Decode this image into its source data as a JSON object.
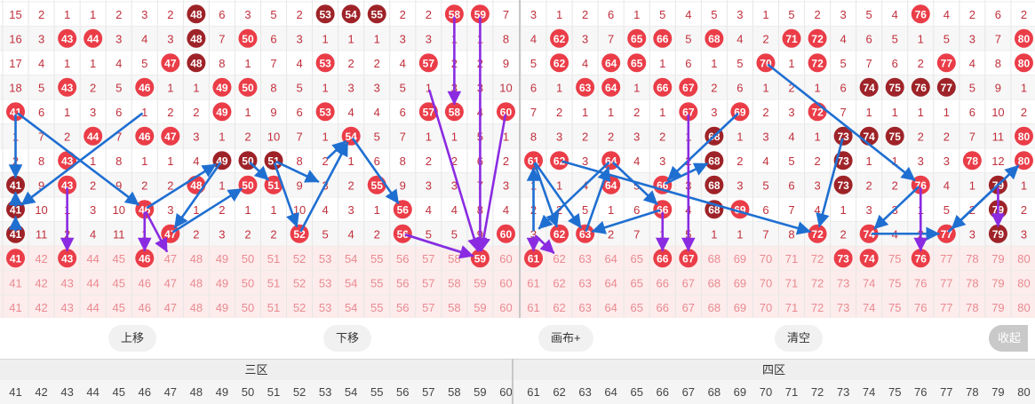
{
  "grid": {
    "rows": [
      [
        "15",
        "2",
        "1",
        "1",
        "2",
        "3",
        "2",
        "48",
        "6",
        "3",
        "5",
        "2",
        "53",
        "54",
        "55",
        "2",
        "2",
        "58",
        "59",
        "7",
        "3",
        "1",
        "2",
        "6",
        "1",
        "5",
        "4",
        "5",
        "3",
        "1",
        "5",
        "2",
        "3",
        "5",
        "4",
        "76",
        "4",
        "2",
        "6",
        "2"
      ],
      [
        "16",
        "3",
        "43",
        "44",
        "3",
        "4",
        "3",
        "48",
        "7",
        "50",
        "6",
        "3",
        "1",
        "1",
        "1",
        "3",
        "3",
        "1",
        "1",
        "8",
        "4",
        "62",
        "3",
        "7",
        "65",
        "66",
        "5",
        "68",
        "4",
        "2",
        "71",
        "72",
        "4",
        "6",
        "5",
        "1",
        "5",
        "3",
        "7",
        "80"
      ],
      [
        "17",
        "4",
        "1",
        "1",
        "4",
        "5",
        "47",
        "48",
        "8",
        "1",
        "7",
        "4",
        "53",
        "2",
        "2",
        "4",
        "57",
        "2",
        "2",
        "9",
        "5",
        "62",
        "4",
        "64",
        "65",
        "1",
        "6",
        "1",
        "5",
        "70",
        "1",
        "72",
        "5",
        "7",
        "6",
        "2",
        "77",
        "4",
        "8",
        "80"
      ],
      [
        "18",
        "5",
        "43",
        "2",
        "5",
        "46",
        "1",
        "1",
        "49",
        "50",
        "8",
        "5",
        "1",
        "3",
        "3",
        "5",
        "1",
        "3",
        "3",
        "10",
        "6",
        "1",
        "63",
        "64",
        "1",
        "66",
        "67",
        "2",
        "6",
        "1",
        "2",
        "1",
        "6",
        "74",
        "75",
        "76",
        "77",
        "5",
        "9",
        "1"
      ],
      [
        "41",
        "6",
        "1",
        "3",
        "6",
        "1",
        "2",
        "2",
        "49",
        "1",
        "9",
        "6",
        "53",
        "4",
        "4",
        "6",
        "57",
        "58",
        "4",
        "60",
        "7",
        "2",
        "1",
        "1",
        "2",
        "1",
        "67",
        "3",
        "69",
        "2",
        "3",
        "72",
        "7",
        "1",
        "1",
        "1",
        "1",
        "6",
        "10",
        "2"
      ],
      [
        "1",
        "7",
        "2",
        "44",
        "7",
        "46",
        "47",
        "3",
        "1",
        "2",
        "10",
        "7",
        "1",
        "54",
        "5",
        "7",
        "1",
        "1",
        "5",
        "1",
        "8",
        "3",
        "2",
        "2",
        "3",
        "2",
        "1",
        "68",
        "1",
        "3",
        "4",
        "1",
        "73",
        "74",
        "75",
        "2",
        "2",
        "7",
        "11",
        "80"
      ],
      [
        "2",
        "8",
        "43",
        "1",
        "8",
        "1",
        "1",
        "4",
        "49",
        "50",
        "51",
        "8",
        "2",
        "1",
        "6",
        "8",
        "2",
        "2",
        "6",
        "2",
        "61",
        "62",
        "3",
        "64",
        "4",
        "3",
        "2",
        "68",
        "2",
        "4",
        "5",
        "2",
        "73",
        "1",
        "1",
        "3",
        "3",
        "78",
        "12",
        "80"
      ],
      [
        "41",
        "9",
        "43",
        "2",
        "9",
        "2",
        "2",
        "48",
        "1",
        "50",
        "51",
        "9",
        "3",
        "2",
        "55",
        "9",
        "3",
        "3",
        "7",
        "3",
        "1",
        "1",
        "4",
        "64",
        "5",
        "66",
        "3",
        "68",
        "3",
        "5",
        "6",
        "3",
        "73",
        "2",
        "2",
        "76",
        "4",
        "1",
        "79",
        "1"
      ],
      [
        "41",
        "10",
        "1",
        "3",
        "10",
        "46",
        "3",
        "1",
        "2",
        "1",
        "1",
        "10",
        "4",
        "3",
        "1",
        "56",
        "4",
        "4",
        "8",
        "4",
        "2",
        "2",
        "5",
        "1",
        "6",
        "66",
        "4",
        "68",
        "69",
        "6",
        "7",
        "4",
        "1",
        "3",
        "3",
        "1",
        "5",
        "2",
        "79",
        "2"
      ],
      [
        "41",
        "11",
        "2",
        "4",
        "11",
        "1",
        "47",
        "2",
        "3",
        "2",
        "2",
        "52",
        "5",
        "4",
        "2",
        "56",
        "5",
        "5",
        "9",
        "60",
        "3",
        "62",
        "63",
        "2",
        "7",
        "1",
        "5",
        "1",
        "1",
        "7",
        "8",
        "72",
        "2",
        "74",
        "4",
        "2",
        "77",
        "3",
        "79",
        "3"
      ],
      [
        "41",
        "42",
        "43",
        "44",
        "45",
        "46",
        "47",
        "48",
        "49",
        "50",
        "51",
        "52",
        "53",
        "54",
        "55",
        "56",
        "57",
        "58",
        "59",
        "60",
        "61",
        "62",
        "63",
        "64",
        "65",
        "66",
        "67",
        "68",
        "69",
        "70",
        "71",
        "72",
        "73",
        "74",
        "75",
        "76",
        "77",
        "78",
        "79",
        "80"
      ],
      [
        "41",
        "42",
        "43",
        "44",
        "45",
        "46",
        "47",
        "48",
        "49",
        "50",
        "51",
        "52",
        "53",
        "54",
        "55",
        "56",
        "57",
        "58",
        "59",
        "60",
        "61",
        "62",
        "63",
        "64",
        "65",
        "66",
        "67",
        "68",
        "69",
        "70",
        "71",
        "72",
        "73",
        "74",
        "75",
        "76",
        "77",
        "78",
        "79",
        "80"
      ],
      [
        "41",
        "42",
        "43",
        "44",
        "45",
        "46",
        "47",
        "48",
        "49",
        "50",
        "51",
        "52",
        "53",
        "54",
        "55",
        "56",
        "57",
        "58",
        "59",
        "60",
        "61",
        "62",
        "63",
        "64",
        "65",
        "66",
        "67",
        "68",
        "69",
        "70",
        "71",
        "72",
        "73",
        "74",
        "75",
        "76",
        "77",
        "78",
        "79",
        "80"
      ]
    ],
    "balls": [
      [
        0,
        7,
        "dark"
      ],
      [
        0,
        12,
        "dark"
      ],
      [
        0,
        13,
        "dark"
      ],
      [
        0,
        14,
        "dark"
      ],
      [
        0,
        17,
        "red"
      ],
      [
        0,
        18,
        "red"
      ],
      [
        0,
        35,
        "red"
      ],
      [
        1,
        2,
        "red"
      ],
      [
        1,
        3,
        "red"
      ],
      [
        1,
        7,
        "dark"
      ],
      [
        1,
        9,
        "red"
      ],
      [
        1,
        21,
        "red"
      ],
      [
        1,
        24,
        "red"
      ],
      [
        1,
        25,
        "red"
      ],
      [
        1,
        27,
        "red"
      ],
      [
        1,
        30,
        "red"
      ],
      [
        1,
        31,
        "red"
      ],
      [
        1,
        39,
        "red"
      ],
      [
        2,
        6,
        "red"
      ],
      [
        2,
        7,
        "dark"
      ],
      [
        2,
        12,
        "red"
      ],
      [
        2,
        16,
        "red"
      ],
      [
        2,
        21,
        "red"
      ],
      [
        2,
        23,
        "red"
      ],
      [
        2,
        24,
        "red"
      ],
      [
        2,
        29,
        "red"
      ],
      [
        2,
        31,
        "red"
      ],
      [
        2,
        36,
        "red"
      ],
      [
        2,
        39,
        "red"
      ],
      [
        3,
        2,
        "red"
      ],
      [
        3,
        5,
        "red"
      ],
      [
        3,
        8,
        "red"
      ],
      [
        3,
        9,
        "red"
      ],
      [
        3,
        22,
        "red"
      ],
      [
        3,
        23,
        "red"
      ],
      [
        3,
        25,
        "red"
      ],
      [
        3,
        26,
        "red"
      ],
      [
        3,
        33,
        "dark"
      ],
      [
        3,
        34,
        "dark"
      ],
      [
        3,
        35,
        "dark"
      ],
      [
        3,
        36,
        "dark"
      ],
      [
        4,
        0,
        "red"
      ],
      [
        4,
        8,
        "red"
      ],
      [
        4,
        12,
        "red"
      ],
      [
        4,
        16,
        "red"
      ],
      [
        4,
        17,
        "red"
      ],
      [
        4,
        19,
        "red"
      ],
      [
        4,
        26,
        "red"
      ],
      [
        4,
        28,
        "red"
      ],
      [
        4,
        31,
        "red"
      ],
      [
        5,
        3,
        "red"
      ],
      [
        5,
        5,
        "red"
      ],
      [
        5,
        6,
        "red"
      ],
      [
        5,
        13,
        "red"
      ],
      [
        5,
        27,
        "dark"
      ],
      [
        5,
        32,
        "dark"
      ],
      [
        5,
        33,
        "dark"
      ],
      [
        5,
        34,
        "dark"
      ],
      [
        5,
        39,
        "red"
      ],
      [
        6,
        2,
        "red"
      ],
      [
        6,
        8,
        "dark"
      ],
      [
        6,
        9,
        "dark"
      ],
      [
        6,
        10,
        "dark"
      ],
      [
        6,
        20,
        "red"
      ],
      [
        6,
        21,
        "red"
      ],
      [
        6,
        23,
        "red"
      ],
      [
        6,
        27,
        "dark"
      ],
      [
        6,
        32,
        "dark"
      ],
      [
        6,
        37,
        "red"
      ],
      [
        6,
        39,
        "red"
      ],
      [
        7,
        0,
        "dark"
      ],
      [
        7,
        2,
        "red"
      ],
      [
        7,
        7,
        "red"
      ],
      [
        7,
        9,
        "red"
      ],
      [
        7,
        10,
        "red"
      ],
      [
        7,
        14,
        "red"
      ],
      [
        7,
        23,
        "red"
      ],
      [
        7,
        25,
        "red"
      ],
      [
        7,
        27,
        "dark"
      ],
      [
        7,
        32,
        "dark"
      ],
      [
        7,
        35,
        "red"
      ],
      [
        7,
        38,
        "dark"
      ],
      [
        8,
        0,
        "dark"
      ],
      [
        8,
        5,
        "red"
      ],
      [
        8,
        15,
        "red"
      ],
      [
        8,
        25,
        "red"
      ],
      [
        8,
        27,
        "dark"
      ],
      [
        8,
        28,
        "red"
      ],
      [
        8,
        38,
        "dark"
      ],
      [
        9,
        0,
        "dark"
      ],
      [
        9,
        6,
        "red"
      ],
      [
        9,
        11,
        "red"
      ],
      [
        9,
        15,
        "red"
      ],
      [
        9,
        19,
        "red"
      ],
      [
        9,
        21,
        "red"
      ],
      [
        9,
        22,
        "red"
      ],
      [
        9,
        31,
        "red"
      ],
      [
        9,
        33,
        "red"
      ],
      [
        9,
        36,
        "red"
      ],
      [
        9,
        38,
        "dark"
      ],
      [
        10,
        0,
        "red"
      ],
      [
        10,
        2,
        "red"
      ],
      [
        10,
        5,
        "red"
      ],
      [
        10,
        18,
        "red"
      ],
      [
        10,
        20,
        "red"
      ],
      [
        10,
        25,
        "red"
      ],
      [
        10,
        26,
        "red"
      ],
      [
        10,
        32,
        "red"
      ],
      [
        10,
        33,
        "red"
      ],
      [
        10,
        35,
        "red"
      ]
    ],
    "lines_blue": [
      [
        [
          4,
          0
        ],
        [
          7,
          0
        ]
      ],
      [
        [
          9,
          0
        ],
        [
          8,
          0
        ]
      ],
      [
        [
          8,
          0
        ],
        [
          7,
          0
        ]
      ],
      [
        [
          4,
          5
        ],
        [
          8,
          0
        ]
      ],
      [
        [
          4,
          0
        ],
        [
          8,
          5
        ]
      ],
      [
        [
          8,
          5
        ],
        [
          6,
          8
        ]
      ],
      [
        [
          6,
          8
        ],
        [
          9,
          6
        ]
      ],
      [
        [
          9,
          6
        ],
        [
          7,
          9
        ]
      ],
      [
        [
          6,
          9
        ],
        [
          7,
          10
        ]
      ],
      [
        [
          6,
          10
        ],
        [
          9,
          11
        ]
      ],
      [
        [
          9,
          11
        ],
        [
          5,
          13
        ]
      ],
      [
        [
          5,
          13
        ],
        [
          8,
          15
        ]
      ],
      [
        [
          6,
          10
        ],
        [
          7,
          12
        ]
      ],
      [
        [
          6,
          12
        ],
        [
          5,
          13
        ]
      ],
      [
        [
          9,
          15
        ],
        [
          10,
          18
        ]
      ],
      [
        [
          6,
          20
        ],
        [
          9,
          22
        ]
      ],
      [
        [
          9,
          22
        ],
        [
          6,
          23
        ]
      ],
      [
        [
          6,
          23
        ],
        [
          9,
          20
        ]
      ],
      [
        [
          9,
          20
        ],
        [
          6,
          20
        ]
      ],
      [
        [
          6,
          20
        ],
        [
          9,
          21
        ]
      ],
      [
        [
          6,
          23
        ],
        [
          8,
          25
        ]
      ],
      [
        [
          8,
          25
        ],
        [
          9,
          22
        ]
      ],
      [
        [
          6,
          21
        ],
        [
          9,
          31
        ]
      ],
      [
        [
          4,
          28
        ],
        [
          7,
          25
        ]
      ],
      [
        [
          7,
          25
        ],
        [
          6,
          27
        ]
      ],
      [
        [
          2,
          29
        ],
        [
          7,
          35
        ]
      ],
      [
        [
          7,
          35
        ],
        [
          9,
          33
        ]
      ],
      [
        [
          9,
          33
        ],
        [
          9,
          36
        ]
      ],
      [
        [
          9,
          36
        ],
        [
          6,
          39
        ]
      ],
      [
        [
          7,
          38
        ],
        [
          9,
          36
        ]
      ],
      [
        [
          5,
          32
        ],
        [
          9,
          31
        ]
      ]
    ],
    "lines_purple": [
      [
        [
          0,
          17
        ],
        [
          4,
          17
        ]
      ],
      [
        [
          0,
          18
        ],
        [
          10,
          18
        ]
      ],
      [
        [
          3,
          16
        ],
        [
          10,
          18
        ]
      ],
      [
        [
          9,
          15
        ],
        [
          10,
          18
        ]
      ],
      [
        [
          4,
          19
        ],
        [
          10,
          18
        ]
      ],
      [
        [
          7,
          2
        ],
        [
          10,
          2
        ]
      ],
      [
        [
          8,
          5
        ],
        [
          10,
          5
        ]
      ],
      [
        [
          8,
          5
        ],
        [
          10,
          6
        ]
      ],
      [
        [
          9,
          20
        ],
        [
          10,
          20
        ]
      ],
      [
        [
          9,
          20
        ],
        [
          10,
          21
        ]
      ],
      [
        [
          8,
          25
        ],
        [
          10,
          25
        ]
      ],
      [
        [
          4,
          26
        ],
        [
          10,
          26
        ]
      ],
      [
        [
          7,
          35
        ],
        [
          10,
          35
        ]
      ],
      [
        [
          7,
          38
        ],
        [
          9,
          38
        ]
      ]
    ]
  },
  "colors": {
    "red": "#ea3d48",
    "dark": "#9e2328",
    "numText": "#c0303c",
    "lightText": "#e98a90",
    "rowLight": "#fdecec",
    "blue": "#1f6fd1",
    "purple": "#8a2be2"
  },
  "toolbar": {
    "up": "上移",
    "down": "下移",
    "canvas": "画布+",
    "clear": "清空",
    "collapse": "收起"
  },
  "zones": {
    "left": "三区",
    "right": "四区"
  },
  "footer": [
    "41",
    "42",
    "43",
    "44",
    "45",
    "46",
    "47",
    "48",
    "49",
    "50",
    "51",
    "52",
    "53",
    "54",
    "55",
    "56",
    "57",
    "58",
    "59",
    "60",
    "61",
    "62",
    "63",
    "64",
    "65",
    "66",
    "67",
    "68",
    "69",
    "70",
    "71",
    "72",
    "73",
    "74",
    "75",
    "76",
    "77",
    "78",
    "79",
    "80"
  ]
}
